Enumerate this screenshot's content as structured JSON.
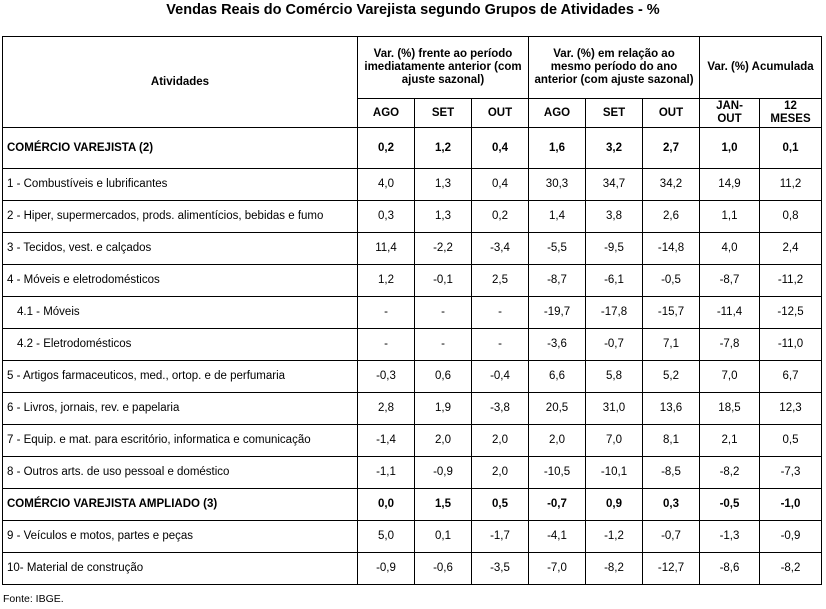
{
  "title": "Vendas Reais do Comércio Varejista segundo Grupos de Atividades - %",
  "header": {
    "activities": "Atividades",
    "group1": "Var. (%) frente ao período imediatamente anterior (com ajuste sazonal)",
    "group2": "Var. (%) em relação ao mesmo período do ano anterior (com ajuste sazonal)",
    "group3": "Var. (%) Acumulada",
    "sub": [
      "AGO",
      "SET",
      "OUT",
      "AGO",
      "SET",
      "OUT",
      "JAN-OUT",
      "12 MESES"
    ]
  },
  "rows": [
    {
      "label": "COMÉRCIO VAREJISTA (2)",
      "values": [
        "0,2",
        "1,2",
        "0,4",
        "1,6",
        "3,2",
        "2,7",
        "1,0",
        "0,1"
      ]
    },
    {
      "label": "1 - Combustíveis e lubrificantes",
      "values": [
        "4,0",
        "1,3",
        "0,4",
        "30,3",
        "34,7",
        "34,2",
        "14,9",
        "11,2"
      ]
    },
    {
      "label": "2 - Hiper, supermercados, prods. alimentícios, bebidas e fumo",
      "values": [
        "0,3",
        "1,3",
        "0,2",
        "1,4",
        "3,8",
        "2,6",
        "1,1",
        "0,8"
      ]
    },
    {
      "label": "3 - Tecidos, vest. e calçados",
      "values": [
        "11,4",
        "-2,2",
        "-3,4",
        "-5,5",
        "-9,5",
        "-14,8",
        "4,0",
        "2,4"
      ]
    },
    {
      "label": "4 - Móveis e eletrodomésticos",
      "values": [
        "1,2",
        "-0,1",
        "2,5",
        "-8,7",
        "-6,1",
        "-0,5",
        "-8,7",
        "-11,2"
      ]
    },
    {
      "label": "4.1 - Móveis",
      "values": [
        "-",
        "-",
        "-",
        "-19,7",
        "-17,8",
        "-15,7",
        "-11,4",
        "-12,5"
      ]
    },
    {
      "label": "4.2 - Eletrodomésticos",
      "values": [
        "-",
        "-",
        "-",
        "-3,6",
        "-0,7",
        "7,1",
        "-7,8",
        "-11,0"
      ]
    },
    {
      "label": "5 - Artigos farmaceuticos, med., ortop. e de perfumaria",
      "values": [
        "-0,3",
        "0,6",
        "-0,4",
        "6,6",
        "5,8",
        "5,2",
        "7,0",
        "6,7"
      ]
    },
    {
      "label": "6 - Livros, jornais, rev. e papelaria",
      "values": [
        "2,8",
        "1,9",
        "-3,8",
        "20,5",
        "31,0",
        "13,6",
        "18,5",
        "12,3"
      ]
    },
    {
      "label": "7 - Equip. e mat. para escritório, informatica e comunicação",
      "values": [
        "-1,4",
        "2,0",
        "2,0",
        "2,0",
        "7,0",
        "8,1",
        "2,1",
        "0,5"
      ]
    },
    {
      "label": "8 - Outros arts. de uso pessoal e doméstico",
      "values": [
        "-1,1",
        "-0,9",
        "2,0",
        "-10,5",
        "-10,1",
        "-8,5",
        "-8,2",
        "-7,3"
      ]
    },
    {
      "label": "COMÉRCIO VAREJISTA AMPLIADO (3)",
      "values": [
        "0,0",
        "1,5",
        "0,5",
        "-0,7",
        "0,9",
        "0,3",
        "-0,5",
        "-1,0"
      ]
    },
    {
      "label": "9 - Veículos e motos, partes e peças",
      "values": [
        "5,0",
        "0,1",
        "-1,7",
        "-4,1",
        "-1,2",
        "-0,7",
        "-1,3",
        "-0,9"
      ]
    },
    {
      "label": "10- Material de construção",
      "values": [
        "-0,9",
        "-0,6",
        "-3,5",
        "-7,0",
        "-8,2",
        "-12,7",
        "-8,6",
        "-8,2"
      ]
    }
  ],
  "source": "Fonte: IBGE."
}
